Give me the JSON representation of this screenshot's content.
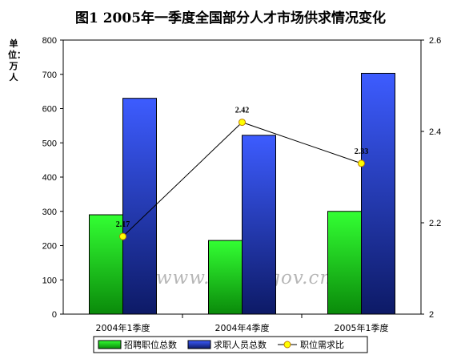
{
  "chart_data": {
    "type": "bar",
    "title": "图1 2005年一季度全国部分人才市场供求情况变化",
    "ylabel": "单位：万人",
    "categories": [
      "2004年1季度",
      "2004年4季度",
      "2005年1季度"
    ],
    "ylim": [
      0,
      800
    ],
    "y_ticks": [
      "0",
      "100",
      "200",
      "300",
      "400",
      "500",
      "600",
      "700",
      "800"
    ],
    "y2lim": [
      2,
      2.6
    ],
    "y2_ticks": [
      "2",
      "2.2",
      "2.4",
      "2.6"
    ],
    "series": [
      {
        "name": "招聘职位总数",
        "type": "bar",
        "axis": "left",
        "values": [
          290,
          215,
          300
        ],
        "color": "#22cc22"
      },
      {
        "name": "求职人员总数",
        "type": "bar",
        "axis": "left",
        "values": [
          630,
          522,
          703
        ],
        "color": "#2b3fd0"
      },
      {
        "name": "职位需求比",
        "type": "line",
        "axis": "right",
        "values": [
          2.17,
          2.42,
          2.33
        ],
        "labels": [
          "2.17",
          "2.42",
          "2.33"
        ],
        "color": "#ffff00"
      }
    ],
    "watermark": "www.chrm.gov.cn",
    "legend": "bottom",
    "grid": false
  }
}
